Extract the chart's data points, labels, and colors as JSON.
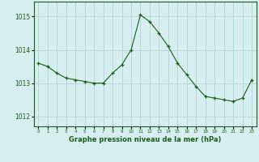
{
  "hours": [
    0,
    1,
    2,
    3,
    4,
    5,
    6,
    7,
    8,
    9,
    10,
    11,
    12,
    13,
    14,
    15,
    16,
    17,
    18,
    19,
    20,
    21,
    22,
    23
  ],
  "pressure": [
    1013.6,
    1013.5,
    1013.3,
    1013.15,
    1013.1,
    1013.05,
    1013.0,
    1013.0,
    1013.3,
    1013.55,
    1014.0,
    1015.05,
    1014.85,
    1014.5,
    1014.1,
    1013.6,
    1013.25,
    1012.9,
    1012.6,
    1012.55,
    1012.5,
    1012.45,
    1012.55,
    1013.1
  ],
  "line_color": "#1a5c1a",
  "marker": "+",
  "bg_color": "#d6eeee",
  "grid_color": "#aacfcf",
  "ylabel_values": [
    1012,
    1013,
    1014,
    1015
  ],
  "xlabel_label": "Graphe pression niveau de la mer (hPa)",
  "xlabel_color": "#1a5c1a",
  "ylim_min": 1011.7,
  "ylim_max": 1015.45,
  "xlim_min": -0.5,
  "xlim_max": 23.5
}
